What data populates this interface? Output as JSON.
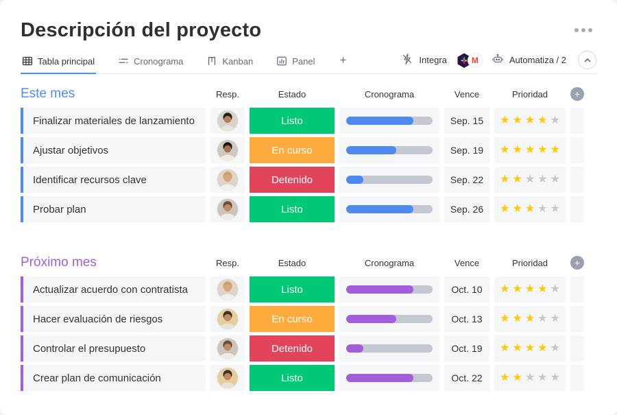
{
  "header": {
    "title": "Descripción del proyecto"
  },
  "tabbar": {
    "tabs": [
      {
        "label": "Tabla principal",
        "active": true
      },
      {
        "label": "Cronograma",
        "active": false
      },
      {
        "label": "Kanban",
        "active": false
      },
      {
        "label": "Panel",
        "active": false
      }
    ],
    "add_tab_label": "+",
    "integrate_label": "Integra",
    "automate_label": "Automatiza / 2"
  },
  "columns": {
    "owner": "Resp.",
    "status": "Estado",
    "timeline": "Cronograma",
    "due": "Vence",
    "priority": "Prioridad",
    "add": "+"
  },
  "groups": [
    {
      "title": "Este mes",
      "color": "#4f8af3",
      "bar_color": "#4f8af3",
      "rows": [
        {
          "name": "Finalizar materiales de lanzamiento",
          "status": "Listo",
          "status_color": "#00c875",
          "progress": 78,
          "due": "Sep. 15",
          "priority": 4,
          "avatar": {
            "label": "woman-dark-hair",
            "bg": "#d8d3cc",
            "hair": "#2a211d",
            "skin": "#b97e5c",
            "shirt": "#e9e4da"
          }
        },
        {
          "name": "Ajustar objetivos",
          "status": "En curso",
          "status_color": "#fdab3d",
          "progress": 58,
          "due": "Sep. 19",
          "priority": 5,
          "avatar": {
            "label": "woman-dark-hair-2",
            "bg": "#cfc9c2",
            "hair": "#1f1714",
            "skin": "#a96f4f",
            "shirt": "#f0ece4"
          }
        },
        {
          "name": "Identificar recursos clave",
          "status": "Detenido",
          "status_color": "#e2445c",
          "progress": 20,
          "due": "Sep. 22",
          "priority": 2,
          "avatar": {
            "label": "woman-blonde",
            "bg": "#ded5c8",
            "hair": "#c9a36a",
            "skin": "#d8a57c",
            "shirt": "#f4f1ea"
          }
        },
        {
          "name": "Probar plan",
          "status": "Listo",
          "status_color": "#00c875",
          "progress": 78,
          "due": "Sep. 26",
          "priority": 3,
          "avatar": {
            "label": "woman-glasses",
            "bg": "#cdc5bb",
            "hair": "#6b4f35",
            "skin": "#c08a64",
            "shirt": "#efece6"
          }
        }
      ]
    },
    {
      "title": "Próximo mes",
      "color": "#a25ddc",
      "bar_color": "#a25ddc",
      "rows": [
        {
          "name": "Actualizar acuerdo con contratista",
          "status": "Listo",
          "status_color": "#00c875",
          "progress": 78,
          "due": "Oct. 10",
          "priority": 4,
          "avatar": {
            "label": "woman-blonde",
            "bg": "#ded5c8",
            "hair": "#c9a36a",
            "skin": "#d8a57c",
            "shirt": "#f4f1ea"
          }
        },
        {
          "name": "Hacer evaluación de riesgos",
          "status": "En curso",
          "status_color": "#fdab3d",
          "progress": 58,
          "due": "Oct. 13",
          "priority": 3,
          "avatar": {
            "label": "man-beard",
            "bg": "#e3cf9f",
            "hair": "#3f3226",
            "skin": "#bf8a62",
            "shirt": "#e8e2d6"
          }
        },
        {
          "name": "Controlar el presupuesto",
          "status": "Detenido",
          "status_color": "#e2445c",
          "progress": 20,
          "due": "Oct. 19",
          "priority": 4,
          "avatar": {
            "label": "woman-glasses",
            "bg": "#cdc5bb",
            "hair": "#6b4f35",
            "skin": "#c08a64",
            "shirt": "#efece6"
          }
        },
        {
          "name": "Crear plan de comunicación",
          "status": "Listo",
          "status_color": "#00c875",
          "progress": 78,
          "due": "Oct. 22",
          "priority": 2,
          "avatar": {
            "label": "man-beard-2",
            "bg": "#e3cf9f",
            "hair": "#3f3226",
            "skin": "#bf8a62",
            "shirt": "#e8e2d6"
          }
        }
      ]
    }
  ],
  "colors": {
    "status_done": "#00c875",
    "status_working": "#fdab3d",
    "status_stuck": "#e2445c",
    "star_filled": "#ffcb00",
    "star_empty": "#c3c7d0",
    "progress_track": "#c4c8d1",
    "cell_background": "#f5f6f8",
    "active_tab_underline": "#4a90f4"
  }
}
